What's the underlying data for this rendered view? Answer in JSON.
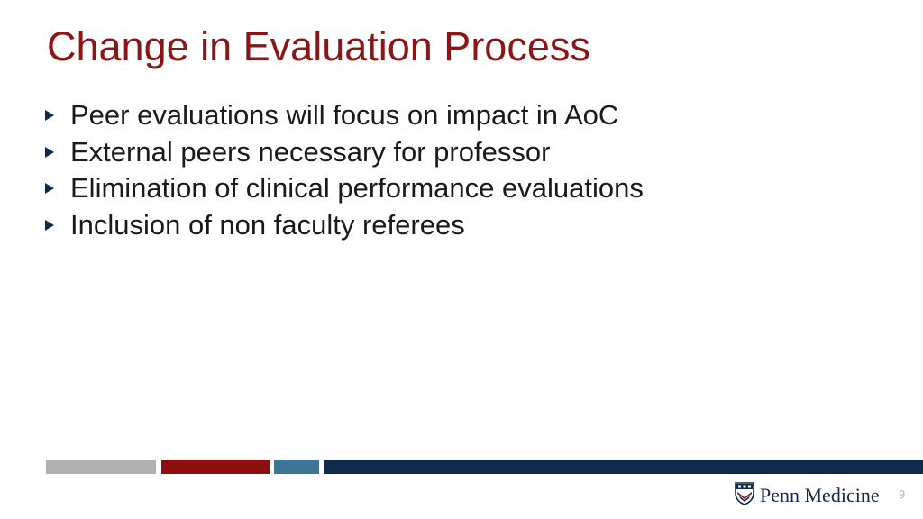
{
  "slide": {
    "title": "Change in Evaluation Process",
    "bullets": [
      "Peer evaluations will focus on impact in AoC",
      "External peers necessary for professor",
      "Elimination of clinical performance evaluations",
      "Inclusion of non faculty referees"
    ],
    "page_number": "9"
  },
  "footer": {
    "logo_text": "Penn Medicine"
  },
  "colors": {
    "title": "#8b1616",
    "gray_bar": "#b1b1b1",
    "red_bar": "#8b0f0f",
    "teal_bar": "#3e7596",
    "navy_bar": "#0f2a4a",
    "bullet_marker": "#0f2a4a"
  },
  "icons": {
    "bullet": "triangle-right-icon",
    "logo": "penn-shield-icon"
  }
}
